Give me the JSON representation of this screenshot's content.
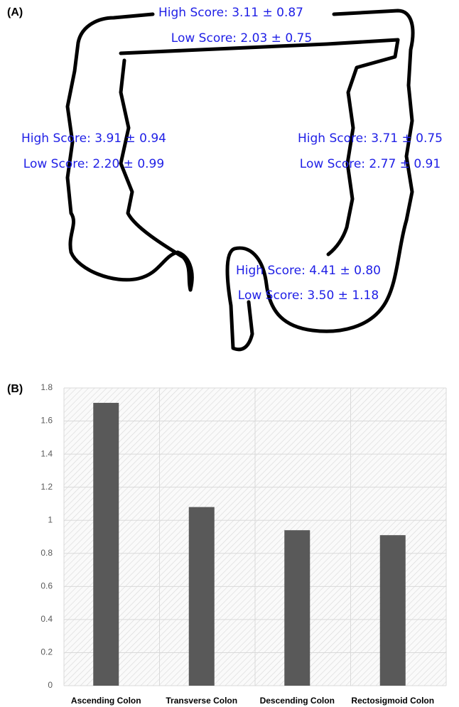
{
  "panel_labels": [
    "(A)",
    "(B)"
  ],
  "colon_diagram": {
    "regions": [
      {
        "high": "High Score: 3.11 ± 0.87",
        "low": "Low Score: 2.03 ± 0.75"
      },
      {
        "high": "High Score: 3.91 ± 0.94",
        "low": "Low Score: 2.20 ± 0.99"
      },
      {
        "high": "High Score: 3.71 ± 0.75",
        "low": "Low Score: 2.77 ± 0.91"
      },
      {
        "high": "High Score: 4.41 ± 0.80",
        "low": "Low Score: 3.50 ± 1.18"
      }
    ]
  },
  "chart_data": {
    "type": "bar",
    "categories": [
      "Ascending Colon",
      "Transverse Colon",
      "Descending Colon",
      "Rectosigmoid Colon"
    ],
    "values": [
      1.71,
      1.08,
      0.94,
      0.91
    ],
    "color": "#595959",
    "ylim": [
      0,
      1.8
    ],
    "yticks": [
      0,
      0.2,
      0.4,
      0.6,
      0.8,
      1,
      1.2,
      1.4,
      1.6,
      1.8
    ],
    "grid": true
  }
}
